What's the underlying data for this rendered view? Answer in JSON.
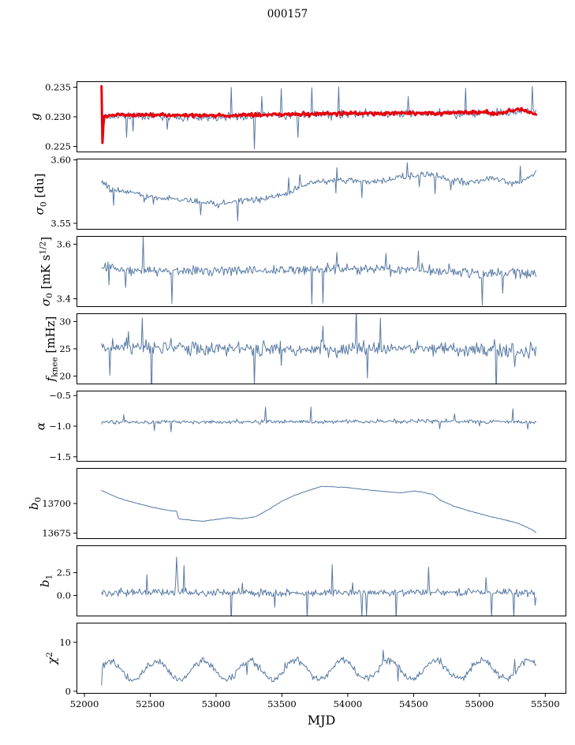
{
  "title": "000157",
  "xlabel": "MJD",
  "colors": {
    "line": "#587aa4",
    "overlay": "#e8000b",
    "axis": "#000000"
  },
  "axes": {
    "xlim": [
      51940,
      55660
    ],
    "xticks": [
      52000,
      52500,
      53000,
      53500,
      54000,
      54500,
      55000,
      55500
    ],
    "xtick_labels": [
      "52000",
      "52500",
      "53000",
      "53500",
      "54000",
      "54500",
      "55000",
      "55500"
    ],
    "x_data_range": [
      52130,
      55430
    ],
    "points_per_series": 470
  },
  "chart_data": [
    {
      "id": "g",
      "type": "line",
      "ylabel_segments": [
        {
          "t": "g",
          "i": true
        }
      ],
      "ylim": [
        0.224,
        0.236
      ],
      "yticks": [
        0.225,
        0.23,
        0.235
      ],
      "ytick_labels": [
        "0.225",
        "0.230",
        "0.235"
      ],
      "series": [
        {
          "name": "g-raw",
          "color": "line",
          "lw": 1.0,
          "seed": 11,
          "noise": 0.00085,
          "spike_prob": 0.025,
          "spike_mult": 2.4,
          "anchors": [
            [
              52130,
              0.23
            ],
            [
              52400,
              0.2302
            ],
            [
              53000,
              0.2299
            ],
            [
              53400,
              0.2302
            ],
            [
              53800,
              0.2303
            ],
            [
              54300,
              0.2305
            ],
            [
              54700,
              0.2306
            ],
            [
              55000,
              0.2305
            ],
            [
              55250,
              0.2308
            ],
            [
              55350,
              0.2312
            ],
            [
              55430,
              0.2303
            ]
          ]
        },
        {
          "name": "g-smoothed",
          "color": "overlay",
          "lw": 3.0,
          "seed": 12,
          "noise": 0.00035,
          "spike_prob": 0,
          "spike_mult": 0,
          "anchors": [
            [
              52130,
              0.2352
            ],
            [
              52136,
              0.2253
            ],
            [
              52148,
              0.23
            ],
            [
              52200,
              0.2304
            ],
            [
              52600,
              0.2303
            ],
            [
              53000,
              0.2302
            ],
            [
              53500,
              0.2304
            ],
            [
              54000,
              0.2306
            ],
            [
              54500,
              0.2306
            ],
            [
              55000,
              0.2308
            ],
            [
              55150,
              0.2306
            ],
            [
              55300,
              0.2313
            ],
            [
              55380,
              0.2308
            ],
            [
              55430,
              0.2303
            ]
          ]
        }
      ]
    },
    {
      "id": "sigma0-du",
      "type": "line",
      "ylabel_segments": [
        {
          "t": "σ",
          "i": true
        },
        {
          "t": "0",
          "sub": true
        },
        {
          "t": " [du]"
        }
      ],
      "ylim": [
        3.545,
        3.601
      ],
      "yticks": [
        3.55,
        3.6
      ],
      "ytick_labels": [
        "3.55",
        "3.60"
      ],
      "series": [
        {
          "name": "sigma0-du",
          "color": "line",
          "lw": 1.0,
          "seed": 21,
          "noise": 0.0033,
          "spike_prob": 0.02,
          "spike_mult": 1.6,
          "anchors": [
            [
              52130,
              3.583
            ],
            [
              52200,
              3.577
            ],
            [
              52500,
              3.571
            ],
            [
              52800,
              3.568
            ],
            [
              53000,
              3.565
            ],
            [
              53150,
              3.567
            ],
            [
              53350,
              3.569
            ],
            [
              53550,
              3.573
            ],
            [
              53650,
              3.58
            ],
            [
              53800,
              3.583
            ],
            [
              54000,
              3.584
            ],
            [
              54200,
              3.583
            ],
            [
              54400,
              3.586
            ],
            [
              54600,
              3.589
            ],
            [
              54750,
              3.585
            ],
            [
              54900,
              3.582
            ],
            [
              55100,
              3.585
            ],
            [
              55250,
              3.582
            ],
            [
              55350,
              3.585
            ],
            [
              55430,
              3.59
            ]
          ]
        }
      ]
    },
    {
      "id": "sigma0-mks",
      "type": "line",
      "ylabel_segments": [
        {
          "t": "σ",
          "i": true
        },
        {
          "t": "0",
          "sub": true
        },
        {
          "t": " [mK s"
        },
        {
          "t": "1/2",
          "sup": true
        },
        {
          "t": "]"
        }
      ],
      "ylim": [
        3.37,
        3.63
      ],
      "yticks": [
        3.4,
        3.6
      ],
      "ytick_labels": [
        "3.4",
        "3.6"
      ],
      "series": [
        {
          "name": "sigma0-mks",
          "color": "line",
          "lw": 1.0,
          "seed": 31,
          "noise": 0.024,
          "spike_prob": 0.025,
          "spike_mult": 2.0,
          "anchors": [
            [
              52130,
              3.51
            ],
            [
              53000,
              3.5
            ],
            [
              54000,
              3.51
            ],
            [
              54800,
              3.5
            ],
            [
              55430,
              3.49
            ]
          ]
        }
      ]
    },
    {
      "id": "fknee",
      "type": "line",
      "ylabel_segments": [
        {
          "t": "f",
          "i": true
        },
        {
          "t": "knee",
          "sub": true
        },
        {
          "t": " [mHz]"
        }
      ],
      "ylim": [
        18.5,
        31.5
      ],
      "yticks": [
        20,
        25,
        30
      ],
      "ytick_labels": [
        "20",
        "25",
        "30"
      ],
      "series": [
        {
          "name": "fknee",
          "color": "line",
          "lw": 1.0,
          "seed": 41,
          "noise": 1.7,
          "spike_prob": 0.03,
          "spike_mult": 1.8,
          "anchors": [
            [
              52130,
              25.3
            ],
            [
              53500,
              24.9
            ],
            [
              54500,
              25.1
            ],
            [
              55430,
              24.7
            ]
          ]
        }
      ]
    },
    {
      "id": "alpha",
      "type": "line",
      "ylabel_segments": [
        {
          "t": "α",
          "i": true
        }
      ],
      "ylim": [
        -1.58,
        -0.42
      ],
      "yticks": [
        -0.5,
        -1.0,
        -1.5
      ],
      "ytick_labels": [
        "−0.5",
        "−1.0",
        "−1.5"
      ],
      "series": [
        {
          "name": "alpha",
          "color": "line",
          "lw": 1.0,
          "seed": 51,
          "noise": 0.04,
          "spike_prob": 0.02,
          "spike_mult": 2.0,
          "anchors": [
            [
              52130,
              -0.93
            ],
            [
              53500,
              -0.93
            ],
            [
              54500,
              -0.92
            ],
            [
              55430,
              -0.93
            ]
          ]
        }
      ]
    },
    {
      "id": "b0",
      "type": "line",
      "ylabel_segments": [
        {
          "t": "b",
          "i": true
        },
        {
          "t": "0",
          "sub": true
        }
      ],
      "ylim": [
        13670,
        13730
      ],
      "yticks": [
        13675,
        13700
      ],
      "ytick_labels": [
        "13675",
        "13700"
      ],
      "series": [
        {
          "name": "b0",
          "color": "line",
          "lw": 1.0,
          "seed": 61,
          "noise": 0.35,
          "spike_prob": 0,
          "spike_mult": 0,
          "anchors": [
            [
              52130,
              13711
            ],
            [
              52250,
              13705
            ],
            [
              52400,
              13700
            ],
            [
              52550,
              13696
            ],
            [
              52650,
              13694
            ],
            [
              52700,
              13693.5
            ],
            [
              52715,
              13687
            ],
            [
              52800,
              13686
            ],
            [
              52900,
              13685
            ],
            [
              53000,
              13686.5
            ],
            [
              53100,
              13688
            ],
            [
              53200,
              13687
            ],
            [
              53300,
              13689
            ],
            [
              53400,
              13695
            ],
            [
              53500,
              13702
            ],
            [
              53600,
              13707
            ],
            [
              53700,
              13711
            ],
            [
              53800,
              13714.5
            ],
            [
              53900,
              13714
            ],
            [
              54000,
              13713.5
            ],
            [
              54100,
              13712
            ],
            [
              54250,
              13710.5
            ],
            [
              54400,
              13709
            ],
            [
              54500,
              13710.5
            ],
            [
              54550,
              13710
            ],
            [
              54650,
              13707.5
            ],
            [
              54700,
              13703
            ],
            [
              54800,
              13698
            ],
            [
              54900,
              13694.5
            ],
            [
              55000,
              13691.5
            ],
            [
              55100,
              13688.5
            ],
            [
              55200,
              13686
            ],
            [
              55300,
              13683
            ],
            [
              55400,
              13678
            ],
            [
              55430,
              13675.5
            ]
          ]
        }
      ]
    },
    {
      "id": "b1",
      "type": "line",
      "ylabel_segments": [
        {
          "t": "b",
          "i": true
        },
        {
          "t": "1",
          "sub": true
        }
      ],
      "ylim": [
        -2.3,
        5.5
      ],
      "yticks": [
        0.0,
        2.5
      ],
      "ytick_labels": [
        "0.0",
        "2.5"
      ],
      "series": [
        {
          "name": "b1",
          "color": "line",
          "lw": 1.0,
          "seed": 71,
          "noise": 0.5,
          "spike_prob": 0.03,
          "spike_mult": 2.2,
          "anchors": [
            [
              52130,
              0.3
            ],
            [
              52690,
              0.3
            ],
            [
              52700,
              3.9
            ],
            [
              52712,
              0.3
            ],
            [
              54000,
              0.3
            ],
            [
              55000,
              0.35
            ],
            [
              55418,
              0.3
            ],
            [
              55426,
              -1.8
            ],
            [
              55430,
              0.2
            ]
          ]
        }
      ]
    },
    {
      "id": "chi2",
      "type": "line",
      "ylabel_segments": [
        {
          "t": "χ",
          "i": true
        },
        {
          "t": "2",
          "sup": true
        }
      ],
      "ylim": [
        -0.5,
        14
      ],
      "yticks": [
        0,
        10
      ],
      "ytick_labels": [
        "0",
        "10"
      ],
      "series": [
        {
          "name": "chi2",
          "color": "line",
          "lw": 1.0,
          "seed": 81,
          "noise": 0.85,
          "spike_prob": 0.01,
          "spike_mult": 1.5,
          "osc": {
            "amp": 1.9,
            "period": 353,
            "phase": 0.4
          },
          "anchors": [
            [
              52130,
              4.2
            ],
            [
              53800,
              4.4
            ],
            [
              55430,
              4.4
            ]
          ]
        }
      ]
    }
  ]
}
